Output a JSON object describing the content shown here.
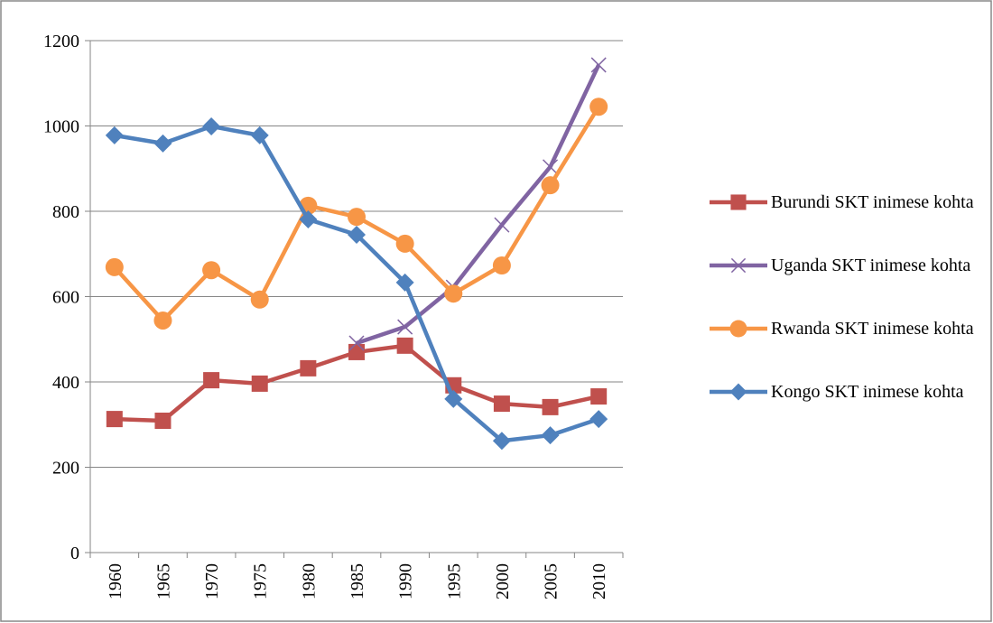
{
  "chart_data": {
    "type": "line",
    "categories": [
      "1960",
      "1965",
      "1970",
      "1975",
      "1980",
      "1985",
      "1990",
      "1995",
      "2000",
      "2005",
      "2010"
    ],
    "series": [
      {
        "name": "Burundi SKT inimese kohta",
        "color": "#c0504d",
        "marker": "square",
        "values": [
          313,
          309,
          404,
          396,
          432,
          470,
          485,
          392,
          349,
          341,
          366
        ]
      },
      {
        "name": "Uganda SKT inimese kohta",
        "color": "#8064a2",
        "marker": "cross",
        "values": [
          null,
          null,
          null,
          null,
          null,
          491,
          529,
          622,
          768,
          904,
          1143
        ]
      },
      {
        "name": "Rwanda SKT inimese kohta",
        "color": "#f79646",
        "marker": "circle",
        "values": [
          669,
          544,
          662,
          593,
          813,
          787,
          724,
          607,
          673,
          861,
          1045
        ]
      },
      {
        "name": "Kongo SKT inimese kohta",
        "color": "#4f81bd",
        "marker": "diamond",
        "values": [
          978,
          959,
          999,
          978,
          781,
          745,
          633,
          360,
          262,
          275,
          313
        ]
      }
    ],
    "ylim": [
      0,
      1200
    ],
    "yticks": [
      0,
      200,
      400,
      600,
      800,
      1000,
      1200
    ],
    "grid": true,
    "legend": "right"
  }
}
